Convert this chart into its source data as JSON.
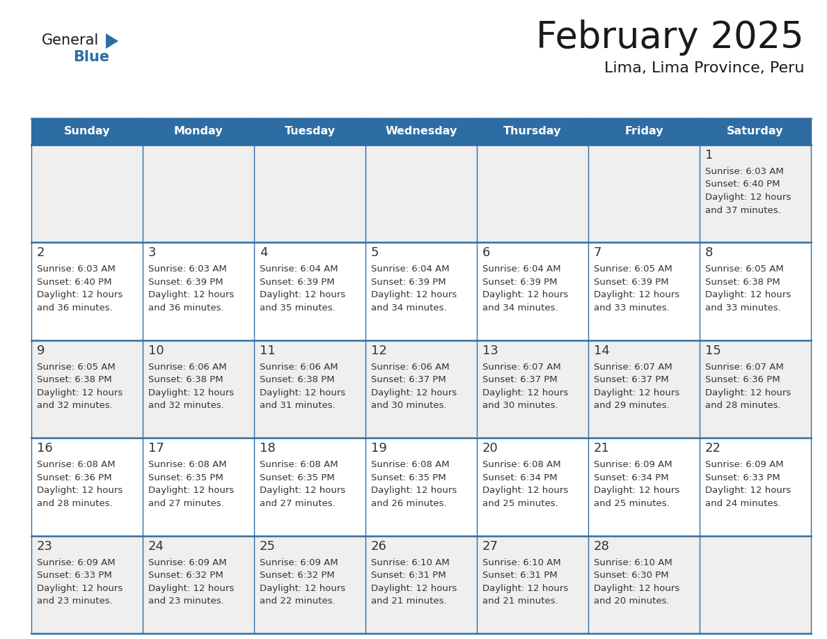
{
  "title": "February 2025",
  "subtitle": "Lima, Lima Province, Peru",
  "header_color": "#2E6DA4",
  "header_text_color": "#FFFFFF",
  "cell_bg_white": "#FFFFFF",
  "cell_bg_gray": "#EFEFEF",
  "border_color": "#2E6DA4",
  "day_number_color": "#333333",
  "info_text_color": "#333333",
  "days_of_week": [
    "Sunday",
    "Monday",
    "Tuesday",
    "Wednesday",
    "Thursday",
    "Friday",
    "Saturday"
  ],
  "calendar_data": [
    [
      null,
      null,
      null,
      null,
      null,
      null,
      {
        "day": 1,
        "sunrise": "6:03 AM",
        "sunset": "6:40 PM",
        "daylight": "12 hours",
        "daylight2": "and 37 minutes."
      }
    ],
    [
      {
        "day": 2,
        "sunrise": "6:03 AM",
        "sunset": "6:40 PM",
        "daylight": "12 hours",
        "daylight2": "and 36 minutes."
      },
      {
        "day": 3,
        "sunrise": "6:03 AM",
        "sunset": "6:39 PM",
        "daylight": "12 hours",
        "daylight2": "and 36 minutes."
      },
      {
        "day": 4,
        "sunrise": "6:04 AM",
        "sunset": "6:39 PM",
        "daylight": "12 hours",
        "daylight2": "and 35 minutes."
      },
      {
        "day": 5,
        "sunrise": "6:04 AM",
        "sunset": "6:39 PM",
        "daylight": "12 hours",
        "daylight2": "and 34 minutes."
      },
      {
        "day": 6,
        "sunrise": "6:04 AM",
        "sunset": "6:39 PM",
        "daylight": "12 hours",
        "daylight2": "and 34 minutes."
      },
      {
        "day": 7,
        "sunrise": "6:05 AM",
        "sunset": "6:39 PM",
        "daylight": "12 hours",
        "daylight2": "and 33 minutes."
      },
      {
        "day": 8,
        "sunrise": "6:05 AM",
        "sunset": "6:38 PM",
        "daylight": "12 hours",
        "daylight2": "and 33 minutes."
      }
    ],
    [
      {
        "day": 9,
        "sunrise": "6:05 AM",
        "sunset": "6:38 PM",
        "daylight": "12 hours",
        "daylight2": "and 32 minutes."
      },
      {
        "day": 10,
        "sunrise": "6:06 AM",
        "sunset": "6:38 PM",
        "daylight": "12 hours",
        "daylight2": "and 32 minutes."
      },
      {
        "day": 11,
        "sunrise": "6:06 AM",
        "sunset": "6:38 PM",
        "daylight": "12 hours",
        "daylight2": "and 31 minutes."
      },
      {
        "day": 12,
        "sunrise": "6:06 AM",
        "sunset": "6:37 PM",
        "daylight": "12 hours",
        "daylight2": "and 30 minutes."
      },
      {
        "day": 13,
        "sunrise": "6:07 AM",
        "sunset": "6:37 PM",
        "daylight": "12 hours",
        "daylight2": "and 30 minutes."
      },
      {
        "day": 14,
        "sunrise": "6:07 AM",
        "sunset": "6:37 PM",
        "daylight": "12 hours",
        "daylight2": "and 29 minutes."
      },
      {
        "day": 15,
        "sunrise": "6:07 AM",
        "sunset": "6:36 PM",
        "daylight": "12 hours",
        "daylight2": "and 28 minutes."
      }
    ],
    [
      {
        "day": 16,
        "sunrise": "6:08 AM",
        "sunset": "6:36 PM",
        "daylight": "12 hours",
        "daylight2": "and 28 minutes."
      },
      {
        "day": 17,
        "sunrise": "6:08 AM",
        "sunset": "6:35 PM",
        "daylight": "12 hours",
        "daylight2": "and 27 minutes."
      },
      {
        "day": 18,
        "sunrise": "6:08 AM",
        "sunset": "6:35 PM",
        "daylight": "12 hours",
        "daylight2": "and 27 minutes."
      },
      {
        "day": 19,
        "sunrise": "6:08 AM",
        "sunset": "6:35 PM",
        "daylight": "12 hours",
        "daylight2": "and 26 minutes."
      },
      {
        "day": 20,
        "sunrise": "6:08 AM",
        "sunset": "6:34 PM",
        "daylight": "12 hours",
        "daylight2": "and 25 minutes."
      },
      {
        "day": 21,
        "sunrise": "6:09 AM",
        "sunset": "6:34 PM",
        "daylight": "12 hours",
        "daylight2": "and 25 minutes."
      },
      {
        "day": 22,
        "sunrise": "6:09 AM",
        "sunset": "6:33 PM",
        "daylight": "12 hours",
        "daylight2": "and 24 minutes."
      }
    ],
    [
      {
        "day": 23,
        "sunrise": "6:09 AM",
        "sunset": "6:33 PM",
        "daylight": "12 hours",
        "daylight2": "and 23 minutes."
      },
      {
        "day": 24,
        "sunrise": "6:09 AM",
        "sunset": "6:32 PM",
        "daylight": "12 hours",
        "daylight2": "and 23 minutes."
      },
      {
        "day": 25,
        "sunrise": "6:09 AM",
        "sunset": "6:32 PM",
        "daylight": "12 hours",
        "daylight2": "and 22 minutes."
      },
      {
        "day": 26,
        "sunrise": "6:10 AM",
        "sunset": "6:31 PM",
        "daylight": "12 hours",
        "daylight2": "and 21 minutes."
      },
      {
        "day": 27,
        "sunrise": "6:10 AM",
        "sunset": "6:31 PM",
        "daylight": "12 hours",
        "daylight2": "and 21 minutes."
      },
      {
        "day": 28,
        "sunrise": "6:10 AM",
        "sunset": "6:30 PM",
        "daylight": "12 hours",
        "daylight2": "and 20 minutes."
      },
      null
    ]
  ],
  "logo_text_general": "General",
  "logo_text_blue": "Blue",
  "logo_triangle_color": "#2E6DA4",
  "logo_general_color": "#1a1a1a"
}
